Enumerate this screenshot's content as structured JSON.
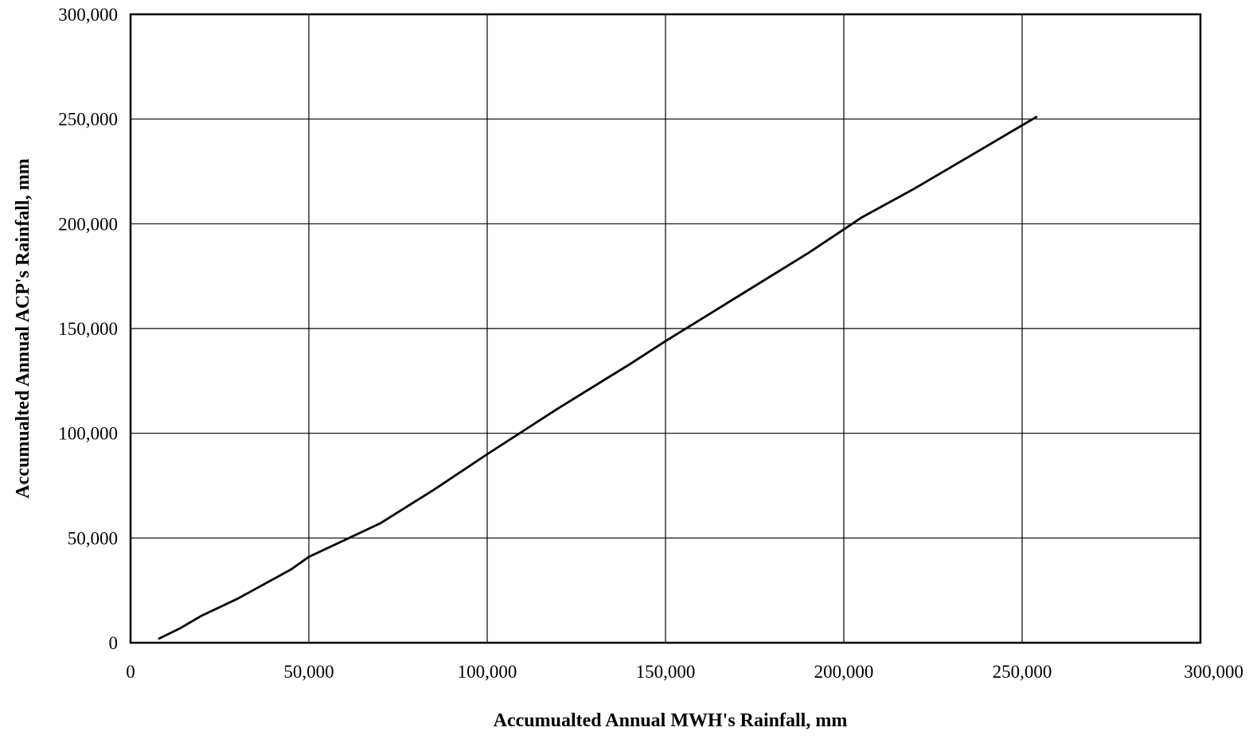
{
  "chart_data": {
    "type": "line",
    "title": "",
    "xlabel": "Accumualted Annual MWH's Rainfall, mm",
    "ylabel": "Accumualted Annual ACP's Rainfall, mm",
    "xlim": [
      0,
      300000
    ],
    "ylim": [
      0,
      300000
    ],
    "x_ticks": [
      0,
      50000,
      100000,
      150000,
      200000,
      250000,
      300000
    ],
    "y_ticks": [
      0,
      50000,
      100000,
      150000,
      200000,
      250000,
      300000
    ],
    "x_tick_labels": [
      "0",
      "50,000",
      "100,000",
      "150,000",
      "200,000",
      "250,000",
      "300,000"
    ],
    "y_tick_labels": [
      "0",
      "50,000",
      "100,000",
      "150,000",
      "200,000",
      "250,000",
      "300,000"
    ],
    "grid": true,
    "legend": false,
    "series": [
      {
        "color": "#000000",
        "x": [
          8000,
          14000,
          20000,
          30000,
          45000,
          50000,
          60000,
          70000,
          85000,
          100000,
          120000,
          140000,
          150000,
          170000,
          190000,
          205000,
          220000,
          240000,
          254000
        ],
        "y": [
          2000,
          7000,
          13000,
          21000,
          35000,
          41000,
          49000,
          57000,
          73000,
          90000,
          112000,
          133000,
          144000,
          165000,
          186000,
          203000,
          217000,
          237000,
          251000
        ]
      }
    ]
  }
}
